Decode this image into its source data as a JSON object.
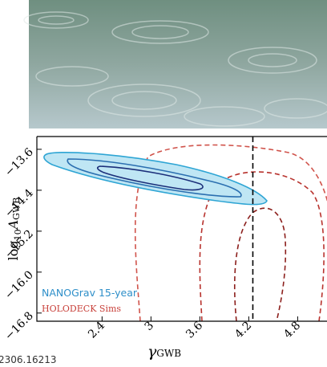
{
  "chart_data": {
    "type": "contour",
    "xlabel": "γ",
    "xlabel_sub": "GWB",
    "ylabel_parts": [
      "log",
      "10",
      "A",
      "GWB"
    ],
    "xlim": [
      1.6,
      5.16
    ],
    "ylim": [
      -16.96,
      -13.35
    ],
    "xticks": [
      2.4,
      3.0,
      3.6,
      4.2,
      4.8
    ],
    "yticks": [
      {
        "value": -13.6,
        "label": "−13.6"
      },
      {
        "value": -14.4,
        "label": "−14.4"
      },
      {
        "value": -15.2,
        "label": "−15.2"
      },
      {
        "value": -16.0,
        "label": "−16.0"
      },
      {
        "value": -16.8,
        "label": "−16.8"
      }
    ],
    "reference_x": 4.25,
    "series": [
      {
        "name": "NANOGrav 15-year",
        "color": "#2e8fc9"
      },
      {
        "name": "HOLODECK Sims",
        "color": "#c8403a"
      }
    ]
  },
  "footer": "2306.16213"
}
